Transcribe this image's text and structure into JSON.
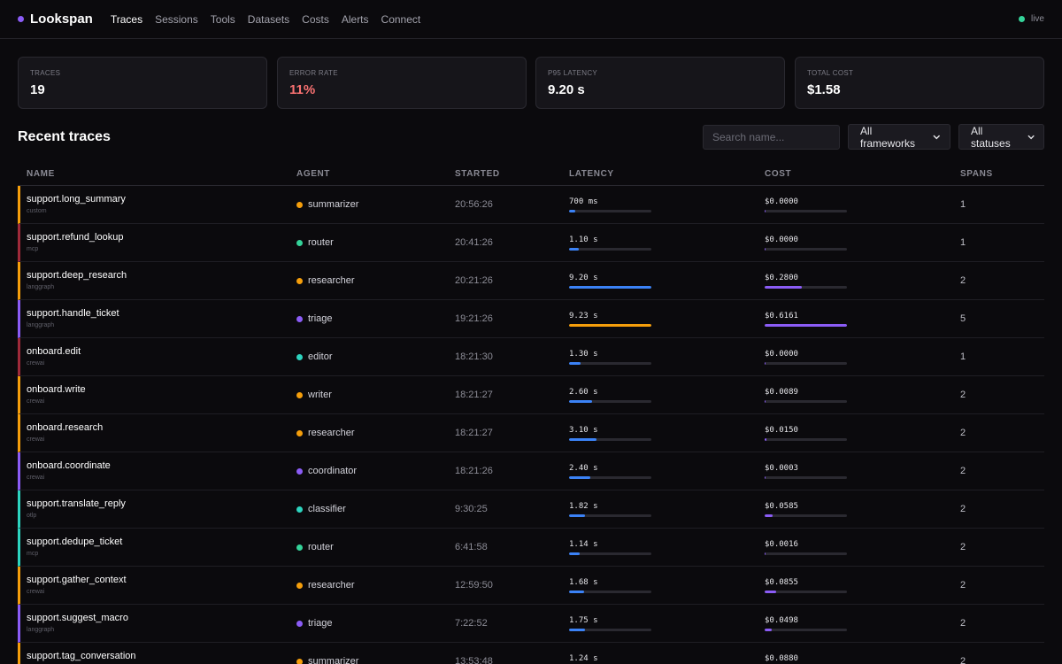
{
  "app": {
    "name": "Lookspan",
    "status": "live"
  },
  "nav": [
    {
      "label": "Traces",
      "active": true
    },
    {
      "label": "Sessions",
      "active": false
    },
    {
      "label": "Tools",
      "active": false
    },
    {
      "label": "Datasets",
      "active": false
    },
    {
      "label": "Costs",
      "active": false
    },
    {
      "label": "Alerts",
      "active": false
    },
    {
      "label": "Connect",
      "active": false
    }
  ],
  "stats": [
    {
      "label": "TRACES",
      "value": "19",
      "color": "#ffffff"
    },
    {
      "label": "ERROR RATE",
      "value": "11%",
      "color": "#f87171"
    },
    {
      "label": "P95 LATENCY",
      "value": "9.20 s",
      "color": "#ffffff"
    },
    {
      "label": "TOTAL COST",
      "value": "$1.58",
      "color": "#ffffff"
    }
  ],
  "section": {
    "title": "Recent traces",
    "search_placeholder": "Search name...",
    "framework_filter": "All frameworks",
    "status_filter": "All statuses"
  },
  "columns": [
    "NAME",
    "AGENT",
    "STARTED",
    "LATENCY",
    "COST",
    "SPANS"
  ],
  "colors": {
    "orange": "#f59e0b",
    "red": "#9f2a3a",
    "purple": "#8b5cf6",
    "teal": "#2dd4bf",
    "latency_bar": "#3b82f6",
    "latency_bar_slow": "#f59e0b",
    "cost_bar": "#8b5cf6"
  },
  "traces": [
    {
      "name": "support.long_summary",
      "framework": "custom",
      "agent": "summarizer",
      "agent_color": "#f59e0b",
      "border_color": "#f59e0b",
      "started": "20:56:26",
      "latency": "700 ms",
      "latency_fraction": 0.076,
      "cost": "$0.0000",
      "cost_fraction": 0.01,
      "spans": "1"
    },
    {
      "name": "support.refund_lookup",
      "framework": "mcp",
      "agent": "router",
      "agent_color": "#34d399",
      "border_color": "#9f2a3a",
      "started": "20:41:26",
      "latency": "1.10 s",
      "latency_fraction": 0.119,
      "cost": "$0.0000",
      "cost_fraction": 0.01,
      "spans": "1"
    },
    {
      "name": "support.deep_research",
      "framework": "langgraph",
      "agent": "researcher",
      "agent_color": "#f59e0b",
      "border_color": "#f59e0b",
      "started": "20:21:26",
      "latency": "9.20 s",
      "latency_fraction": 0.997,
      "cost": "$0.2800",
      "cost_fraction": 0.4545,
      "spans": "2"
    },
    {
      "name": "support.handle_ticket",
      "framework": "langgraph",
      "agent": "triage",
      "agent_color": "#8b5cf6",
      "border_color": "#8b5cf6",
      "started": "19:21:26",
      "latency": "9.23 s",
      "latency_fraction": 1.0,
      "latency_slow": true,
      "cost": "$0.6161",
      "cost_fraction": 1.0,
      "spans": "5"
    },
    {
      "name": "onboard.edit",
      "framework": "crewai",
      "agent": "editor",
      "agent_color": "#2dd4bf",
      "border_color": "#9f2a3a",
      "started": "18:21:30",
      "latency": "1.30 s",
      "latency_fraction": 0.141,
      "cost": "$0.0000",
      "cost_fraction": 0.01,
      "spans": "1"
    },
    {
      "name": "onboard.write",
      "framework": "crewai",
      "agent": "writer",
      "agent_color": "#f59e0b",
      "border_color": "#f59e0b",
      "started": "18:21:27",
      "latency": "2.60 s",
      "latency_fraction": 0.282,
      "cost": "$0.0089",
      "cost_fraction": 0.0144,
      "spans": "2"
    },
    {
      "name": "onboard.research",
      "framework": "crewai",
      "agent": "researcher",
      "agent_color": "#f59e0b",
      "border_color": "#f59e0b",
      "started": "18:21:27",
      "latency": "3.10 s",
      "latency_fraction": 0.336,
      "cost": "$0.0150",
      "cost_fraction": 0.0243,
      "spans": "2"
    },
    {
      "name": "onboard.coordinate",
      "framework": "crewai",
      "agent": "coordinator",
      "agent_color": "#8b5cf6",
      "border_color": "#8b5cf6",
      "started": "18:21:26",
      "latency": "2.40 s",
      "latency_fraction": 0.26,
      "cost": "$0.0003",
      "cost_fraction": 0.01,
      "spans": "2"
    },
    {
      "name": "support.translate_reply",
      "framework": "otlp",
      "agent": "classifier",
      "agent_color": "#2dd4bf",
      "border_color": "#2dd4bf",
      "started": "9:30:25",
      "latency": "1.82 s",
      "latency_fraction": 0.197,
      "cost": "$0.0585",
      "cost_fraction": 0.0949,
      "spans": "2"
    },
    {
      "name": "support.dedupe_ticket",
      "framework": "mcp",
      "agent": "router",
      "agent_color": "#34d399",
      "border_color": "#2dd4bf",
      "started": "6:41:58",
      "latency": "1.14 s",
      "latency_fraction": 0.124,
      "cost": "$0.0016",
      "cost_fraction": 0.01,
      "spans": "2"
    },
    {
      "name": "support.gather_context",
      "framework": "crewai",
      "agent": "researcher",
      "agent_color": "#f59e0b",
      "border_color": "#f59e0b",
      "started": "12:59:50",
      "latency": "1.68 s",
      "latency_fraction": 0.182,
      "cost": "$0.0855",
      "cost_fraction": 0.1388,
      "spans": "2"
    },
    {
      "name": "support.suggest_macro",
      "framework": "langgraph",
      "agent": "triage",
      "agent_color": "#8b5cf6",
      "border_color": "#8b5cf6",
      "started": "7:22:52",
      "latency": "1.75 s",
      "latency_fraction": 0.19,
      "cost": "$0.0498",
      "cost_fraction": 0.0808,
      "spans": "2"
    },
    {
      "name": "support.tag_conversation",
      "framework": "",
      "agent": "summarizer",
      "agent_color": "#f59e0b",
      "border_color": "#f59e0b",
      "started": "13:53:48",
      "latency": "1.24 s",
      "latency_fraction": 0.134,
      "cost": "$0.0880",
      "cost_fraction": 0.1428,
      "spans": "2"
    }
  ]
}
